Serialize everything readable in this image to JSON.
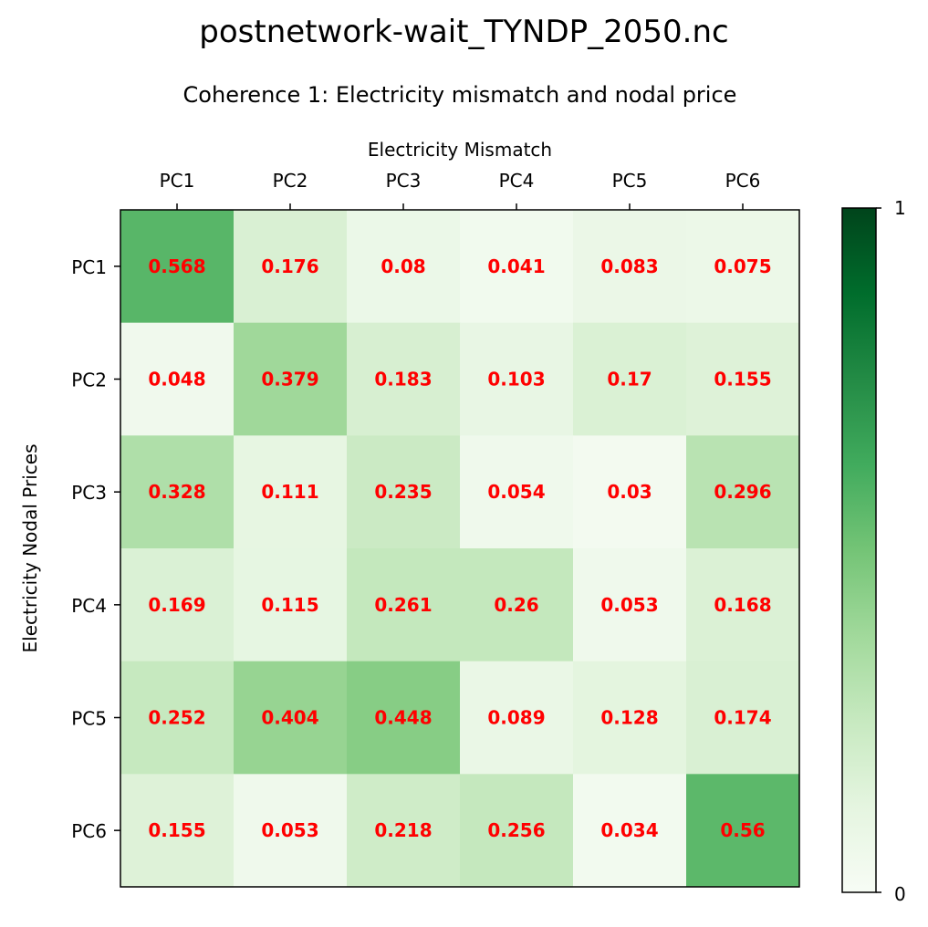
{
  "figure": {
    "suptitle": "postnetwork-wait_TYNDP_2050.nc",
    "subtitle": "Coherence 1: Electricity mismatch and nodal price"
  },
  "chart_data": {
    "type": "heatmap",
    "title": "Coherence 1: Electricity mismatch and nodal price",
    "xlabel": "Electricity Mismatch",
    "ylabel": "Electricity Nodal Prices",
    "x_categories": [
      "PC1",
      "PC2",
      "PC3",
      "PC4",
      "PC5",
      "PC6"
    ],
    "y_categories": [
      "PC1",
      "PC2",
      "PC3",
      "PC4",
      "PC5",
      "PC6"
    ],
    "values": [
      [
        0.568,
        0.176,
        0.08,
        0.041,
        0.083,
        0.075
      ],
      [
        0.048,
        0.379,
        0.183,
        0.103,
        0.17,
        0.155
      ],
      [
        0.328,
        0.111,
        0.235,
        0.054,
        0.03,
        0.296
      ],
      [
        0.169,
        0.115,
        0.261,
        0.26,
        0.053,
        0.168
      ],
      [
        0.252,
        0.404,
        0.448,
        0.089,
        0.128,
        0.174
      ],
      [
        0.155,
        0.053,
        0.218,
        0.256,
        0.034,
        0.56
      ]
    ],
    "value_labels": [
      [
        "0.568",
        "0.176",
        "0.08",
        "0.041",
        "0.083",
        "0.075"
      ],
      [
        "0.048",
        "0.379",
        "0.183",
        "0.103",
        "0.17",
        "0.155"
      ],
      [
        "0.328",
        "0.111",
        "0.235",
        "0.054",
        "0.03",
        "0.296"
      ],
      [
        "0.169",
        "0.115",
        "0.261",
        "0.26",
        "0.053",
        "0.168"
      ],
      [
        "0.252",
        "0.404",
        "0.448",
        "0.089",
        "0.128",
        "0.174"
      ],
      [
        "0.155",
        "0.053",
        "0.218",
        "0.256",
        "0.034",
        "0.56"
      ]
    ],
    "colormap": "Greens",
    "vmin": 0,
    "vmax": 1,
    "colorbar_ticks": [
      "0",
      "1"
    ],
    "label_color": "#ff0000",
    "x_axis_position": "top",
    "grid": false
  }
}
